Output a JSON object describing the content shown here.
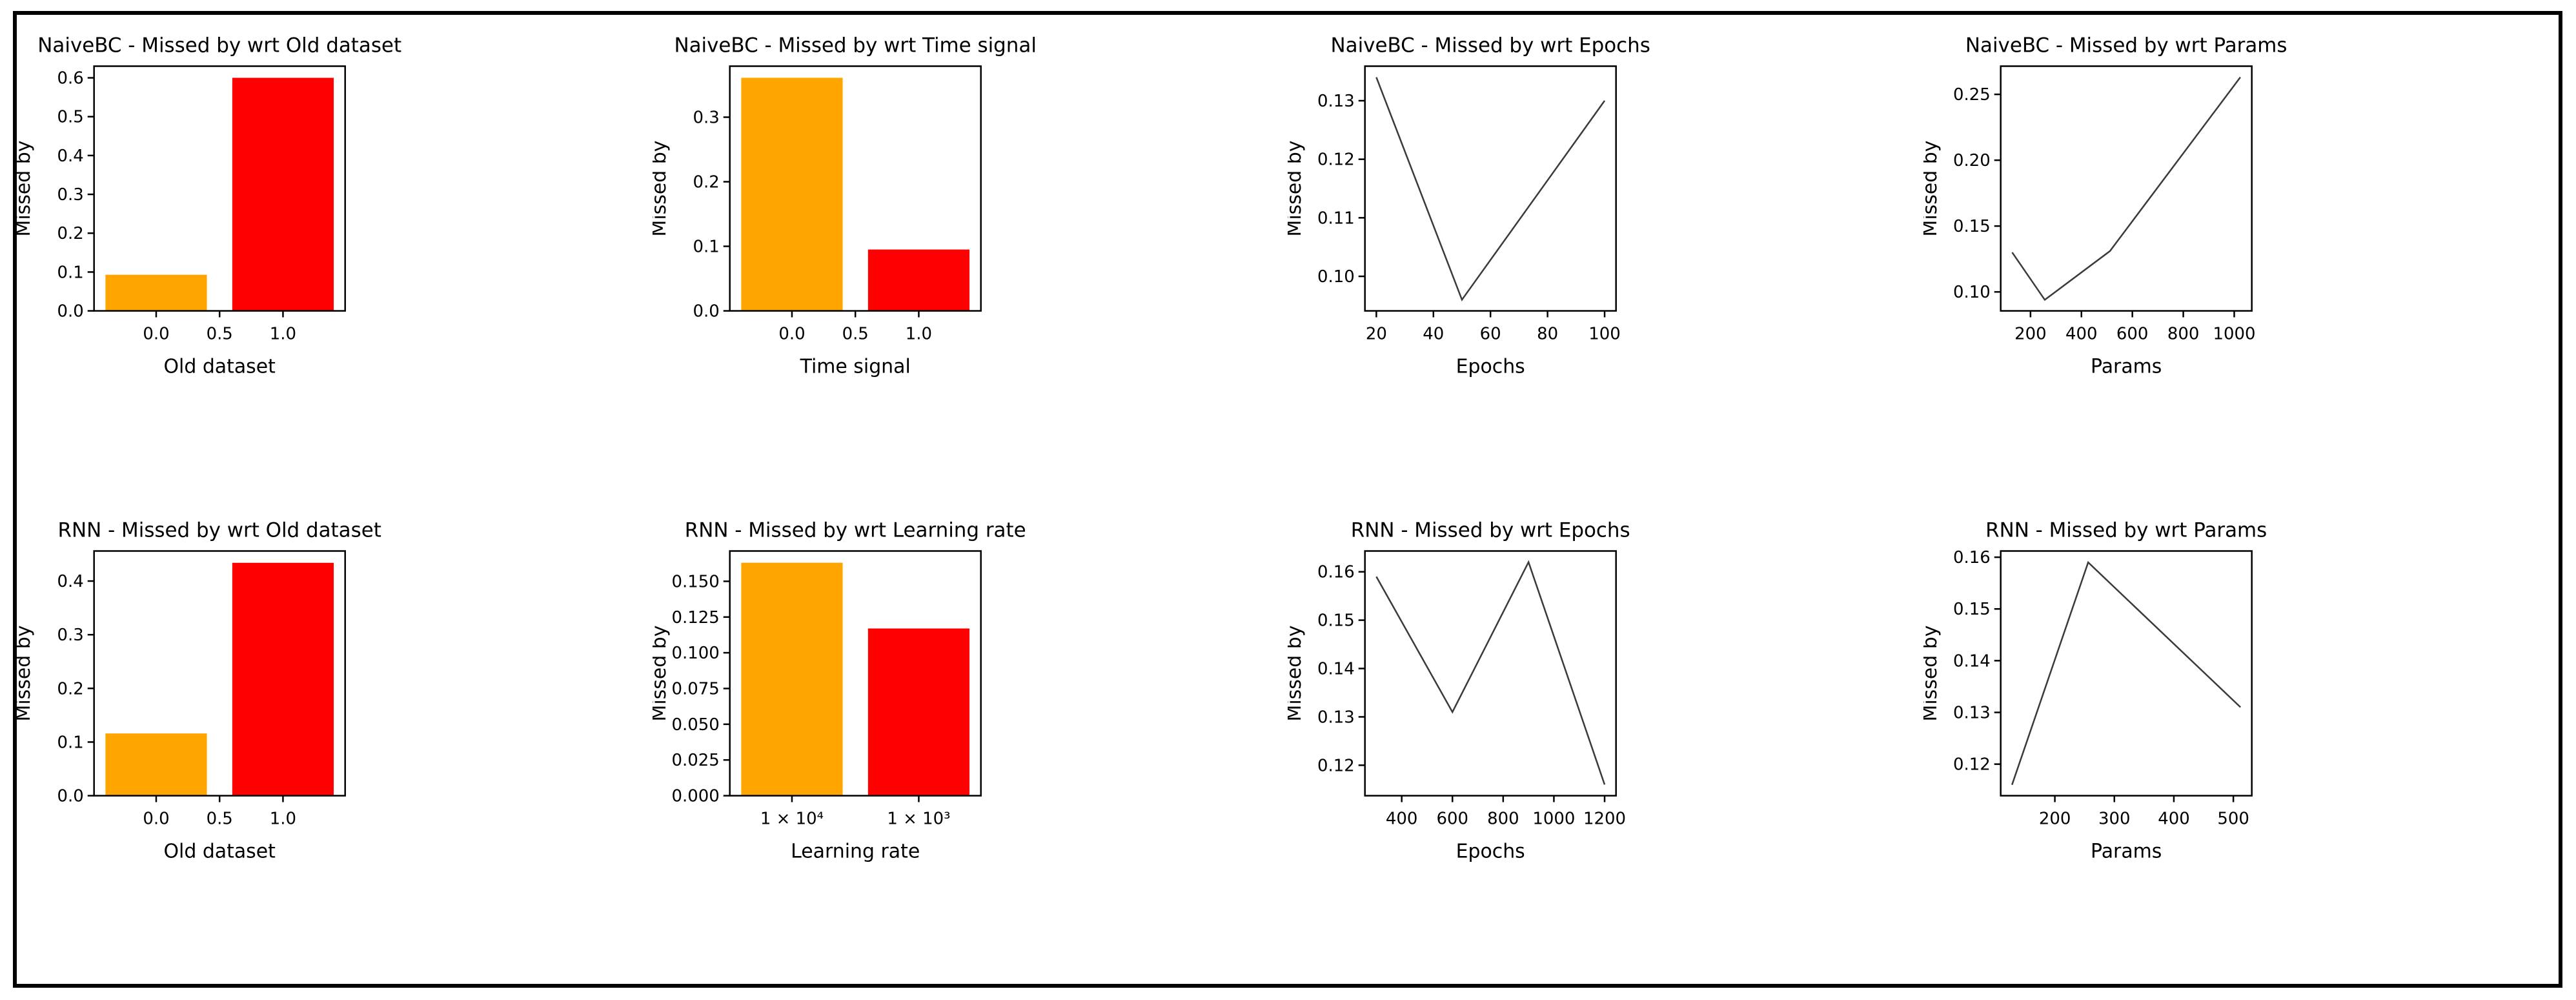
{
  "style": {
    "bar_orange": "#FFA500",
    "bar_red": "#FF0000",
    "line_color": "#3a3a3a",
    "frame_color": "#000000",
    "outer_border_color": "#000000",
    "background": "#ffffff"
  },
  "chart_data": [
    {
      "id": "naivebc-old-dataset",
      "type": "bar",
      "title": "NaiveBC - Missed by wrt Old dataset",
      "xlabel": "Old dataset",
      "ylabel": "Missed by",
      "xlim": [
        -0.49,
        1.49
      ],
      "ylim": [
        0,
        0.63
      ],
      "bar_width": 0.8,
      "bars": [
        {
          "x": 0,
          "value": 0.093,
          "color": "#FFA500"
        },
        {
          "x": 1,
          "value": 0.6,
          "color": "#FF0000"
        }
      ],
      "xticks": [
        {
          "v": 0.0,
          "label": "0.0"
        },
        {
          "v": 0.5,
          "label": "0.5"
        },
        {
          "v": 1.0,
          "label": "1.0"
        }
      ],
      "yticks": [
        {
          "v": 0.0,
          "label": "0.0"
        },
        {
          "v": 0.1,
          "label": "0.1"
        },
        {
          "v": 0.2,
          "label": "0.2"
        },
        {
          "v": 0.3,
          "label": "0.3"
        },
        {
          "v": 0.4,
          "label": "0.4"
        },
        {
          "v": 0.5,
          "label": "0.5"
        },
        {
          "v": 0.6,
          "label": "0.6"
        }
      ]
    },
    {
      "id": "naivebc-time-signal",
      "type": "bar",
      "title": "NaiveBC - Missed by wrt Time signal",
      "xlabel": "Time signal",
      "ylabel": "Missed by",
      "xlim": [
        -0.49,
        1.49
      ],
      "ylim": [
        0,
        0.379
      ],
      "bar_width": 0.8,
      "bars": [
        {
          "x": 0,
          "value": 0.361,
          "color": "#FFA500"
        },
        {
          "x": 1,
          "value": 0.095,
          "color": "#FF0000"
        }
      ],
      "xticks": [
        {
          "v": 0.0,
          "label": "0.0"
        },
        {
          "v": 0.5,
          "label": "0.5"
        },
        {
          "v": 1.0,
          "label": "1.0"
        }
      ],
      "yticks": [
        {
          "v": 0.0,
          "label": "0.0"
        },
        {
          "v": 0.1,
          "label": "0.1"
        },
        {
          "v": 0.2,
          "label": "0.2"
        },
        {
          "v": 0.3,
          "label": "0.3"
        }
      ]
    },
    {
      "id": "naivebc-epochs",
      "type": "line",
      "title": "NaiveBC - Missed by wrt Epochs",
      "xlabel": "Epochs",
      "ylabel": "Missed by",
      "xlim": [
        16,
        104
      ],
      "ylim": [
        0.0941,
        0.1359
      ],
      "points": [
        [
          20,
          0.134
        ],
        [
          50,
          0.096
        ],
        [
          100,
          0.13
        ]
      ],
      "xticks": [
        {
          "v": 20,
          "label": "20"
        },
        {
          "v": 40,
          "label": "40"
        },
        {
          "v": 60,
          "label": "60"
        },
        {
          "v": 80,
          "label": "80"
        },
        {
          "v": 100,
          "label": "100"
        }
      ],
      "yticks": [
        {
          "v": 0.1,
          "label": "0.10"
        },
        {
          "v": 0.11,
          "label": "0.11"
        },
        {
          "v": 0.12,
          "label": "0.12"
        },
        {
          "v": 0.13,
          "label": "0.13"
        }
      ]
    },
    {
      "id": "naivebc-params",
      "type": "line",
      "title": "NaiveBC - Missed by wrt Params",
      "xlabel": "Params",
      "ylabel": "Missed by",
      "xlim": [
        83,
        1069
      ],
      "ylim": [
        0.0856,
        0.2714
      ],
      "points": [
        [
          128,
          0.13
        ],
        [
          256,
          0.094
        ],
        [
          512,
          0.131
        ],
        [
          1024,
          0.263
        ]
      ],
      "xticks": [
        {
          "v": 200,
          "label": "200"
        },
        {
          "v": 400,
          "label": "400"
        },
        {
          "v": 600,
          "label": "600"
        },
        {
          "v": 800,
          "label": "800"
        },
        {
          "v": 1000,
          "label": "1000"
        }
      ],
      "yticks": [
        {
          "v": 0.1,
          "label": "0.10"
        },
        {
          "v": 0.15,
          "label": "0.15"
        },
        {
          "v": 0.2,
          "label": "0.20"
        },
        {
          "v": 0.25,
          "label": "0.25"
        }
      ]
    },
    {
      "id": "rnn-old-dataset",
      "type": "bar",
      "title": "RNN - Missed by wrt Old dataset",
      "xlabel": "Old dataset",
      "ylabel": "Missed by",
      "xlim": [
        -0.49,
        1.49
      ],
      "ylim": [
        0,
        0.456
      ],
      "bar_width": 0.8,
      "bars": [
        {
          "x": 0,
          "value": 0.116,
          "color": "#FFA500"
        },
        {
          "x": 1,
          "value": 0.434,
          "color": "#FF0000"
        }
      ],
      "xticks": [
        {
          "v": 0.0,
          "label": "0.0"
        },
        {
          "v": 0.5,
          "label": "0.5"
        },
        {
          "v": 1.0,
          "label": "1.0"
        }
      ],
      "yticks": [
        {
          "v": 0.0,
          "label": "0.0"
        },
        {
          "v": 0.1,
          "label": "0.1"
        },
        {
          "v": 0.2,
          "label": "0.2"
        },
        {
          "v": 0.3,
          "label": "0.3"
        },
        {
          "v": 0.4,
          "label": "0.4"
        }
      ]
    },
    {
      "id": "rnn-learning-rate",
      "type": "bar",
      "title": "RNN - Missed by wrt Learning rate",
      "xlabel": "Learning rate",
      "ylabel": "Missed by",
      "xlim": [
        -0.49,
        1.49
      ],
      "ylim": [
        0,
        0.1712
      ],
      "bar_width": 0.8,
      "bars": [
        {
          "x": 0,
          "value": 0.163,
          "color": "#FFA500"
        },
        {
          "x": 1,
          "value": 0.117,
          "color": "#FF0000"
        }
      ],
      "xticks": [
        {
          "v": 0,
          "label": "1 × 10⁴"
        },
        {
          "v": 1,
          "label": "1 × 10³"
        }
      ],
      "yticks": [
        {
          "v": 0.0,
          "label": "0.000"
        },
        {
          "v": 0.025,
          "label": "0.025"
        },
        {
          "v": 0.05,
          "label": "0.050"
        },
        {
          "v": 0.075,
          "label": "0.075"
        },
        {
          "v": 0.1,
          "label": "0.100"
        },
        {
          "v": 0.125,
          "label": "0.125"
        },
        {
          "v": 0.15,
          "label": "0.150"
        }
      ]
    },
    {
      "id": "rnn-epochs",
      "type": "line",
      "title": "RNN - Missed by wrt Epochs",
      "xlabel": "Epochs",
      "ylabel": "Missed by",
      "xlim": [
        255,
        1245
      ],
      "ylim": [
        0.1137,
        0.1643
      ],
      "points": [
        [
          300,
          0.159
        ],
        [
          600,
          0.131
        ],
        [
          900,
          0.162
        ],
        [
          1200,
          0.116
        ]
      ],
      "xticks": [
        {
          "v": 400,
          "label": "400"
        },
        {
          "v": 600,
          "label": "600"
        },
        {
          "v": 800,
          "label": "800"
        },
        {
          "v": 1000,
          "label": "1000"
        },
        {
          "v": 1200,
          "label": "1200"
        }
      ],
      "yticks": [
        {
          "v": 0.12,
          "label": "0.12"
        },
        {
          "v": 0.13,
          "label": "0.13"
        },
        {
          "v": 0.14,
          "label": "0.14"
        },
        {
          "v": 0.15,
          "label": "0.15"
        },
        {
          "v": 0.16,
          "label": "0.16"
        }
      ]
    },
    {
      "id": "rnn-params",
      "type": "line",
      "title": "RNN - Missed by wrt Params",
      "xlabel": "Params",
      "ylabel": "Missed by",
      "xlim": [
        109,
        531
      ],
      "ylim": [
        0.1139,
        0.1612
      ],
      "points": [
        [
          128,
          0.116
        ],
        [
          256,
          0.159
        ],
        [
          512,
          0.131
        ]
      ],
      "xticks": [
        {
          "v": 200,
          "label": "200"
        },
        {
          "v": 300,
          "label": "300"
        },
        {
          "v": 400,
          "label": "400"
        },
        {
          "v": 500,
          "label": "500"
        }
      ],
      "yticks": [
        {
          "v": 0.12,
          "label": "0.12"
        },
        {
          "v": 0.13,
          "label": "0.13"
        },
        {
          "v": 0.14,
          "label": "0.14"
        },
        {
          "v": 0.15,
          "label": "0.15"
        },
        {
          "v": 0.16,
          "label": "0.16"
        }
      ]
    }
  ]
}
